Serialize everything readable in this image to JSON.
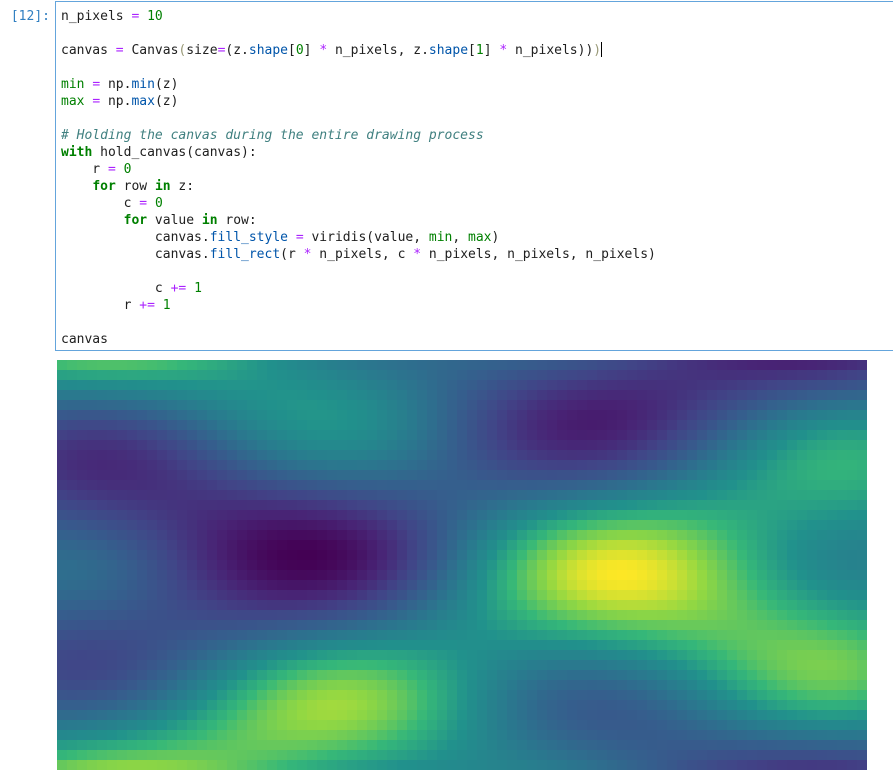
{
  "cell": {
    "prompt": "[12]:",
    "lines": [
      [
        {
          "t": "n_pixels "
        },
        {
          "t": "=",
          "c": "op"
        },
        {
          "t": " "
        },
        {
          "t": "10",
          "c": "num"
        }
      ],
      [],
      [
        {
          "t": "canvas "
        },
        {
          "t": "=",
          "c": "op"
        },
        {
          "t": " Canvas"
        },
        {
          "t": "(",
          "c": "brk"
        },
        {
          "t": "size"
        },
        {
          "t": "=",
          "c": "op"
        },
        {
          "t": "(z."
        },
        {
          "t": "shape",
          "c": "attr"
        },
        {
          "t": "["
        },
        {
          "t": "0",
          "c": "num"
        },
        {
          "t": "] "
        },
        {
          "t": "*",
          "c": "op"
        },
        {
          "t": " n_pixels, z."
        },
        {
          "t": "shape",
          "c": "attr"
        },
        {
          "t": "["
        },
        {
          "t": "1",
          "c": "num"
        },
        {
          "t": "] "
        },
        {
          "t": "*",
          "c": "op"
        },
        {
          "t": " n_pixels))"
        },
        {
          "t": ")",
          "c": "brk"
        },
        {
          "t": "",
          "c": "cursor"
        }
      ],
      [],
      [
        {
          "t": "min",
          "c": "var"
        },
        {
          "t": " "
        },
        {
          "t": "=",
          "c": "op"
        },
        {
          "t": " np."
        },
        {
          "t": "min",
          "c": "attr"
        },
        {
          "t": "(z)"
        }
      ],
      [
        {
          "t": "max",
          "c": "var"
        },
        {
          "t": " "
        },
        {
          "t": "=",
          "c": "op"
        },
        {
          "t": " np."
        },
        {
          "t": "max",
          "c": "attr"
        },
        {
          "t": "(z)"
        }
      ],
      [],
      [
        {
          "t": "# Holding the canvas during the entire drawing process",
          "c": "cmt"
        }
      ],
      [
        {
          "t": "with",
          "c": "kw"
        },
        {
          "t": " hold_canvas(canvas):"
        }
      ],
      [
        {
          "t": "    r "
        },
        {
          "t": "=",
          "c": "op"
        },
        {
          "t": " "
        },
        {
          "t": "0",
          "c": "num"
        }
      ],
      [
        {
          "t": "    "
        },
        {
          "t": "for",
          "c": "kw"
        },
        {
          "t": " row "
        },
        {
          "t": "in",
          "c": "kw"
        },
        {
          "t": " z:"
        }
      ],
      [
        {
          "t": "        c "
        },
        {
          "t": "=",
          "c": "op"
        },
        {
          "t": " "
        },
        {
          "t": "0",
          "c": "num"
        }
      ],
      [
        {
          "t": "        "
        },
        {
          "t": "for",
          "c": "kw"
        },
        {
          "t": " value "
        },
        {
          "t": "in",
          "c": "kw"
        },
        {
          "t": " row:"
        }
      ],
      [
        {
          "t": "            canvas."
        },
        {
          "t": "fill_style",
          "c": "attr"
        },
        {
          "t": " "
        },
        {
          "t": "=",
          "c": "op"
        },
        {
          "t": " viridis(value, "
        },
        {
          "t": "min",
          "c": "var"
        },
        {
          "t": ", "
        },
        {
          "t": "max",
          "c": "var"
        },
        {
          "t": ")"
        }
      ],
      [
        {
          "t": "            canvas."
        },
        {
          "t": "fill_rect",
          "c": "attr"
        },
        {
          "t": "(r "
        },
        {
          "t": "*",
          "c": "op"
        },
        {
          "t": " n_pixels, c "
        },
        {
          "t": "*",
          "c": "op"
        },
        {
          "t": " n_pixels, n_pixels, n_pixels)"
        }
      ],
      [],
      [
        {
          "t": "            c "
        },
        {
          "t": "+=",
          "c": "op"
        },
        {
          "t": " "
        },
        {
          "t": "1",
          "c": "num"
        }
      ],
      [
        {
          "t": "        r "
        },
        {
          "t": "+=",
          "c": "op"
        },
        {
          "t": " "
        },
        {
          "t": "1",
          "c": "num"
        }
      ],
      [],
      [
        {
          "t": "canvas"
        }
      ]
    ]
  },
  "output": {
    "grid_cols": 81,
    "grid_rows": 41,
    "colormap": "viridis"
  }
}
